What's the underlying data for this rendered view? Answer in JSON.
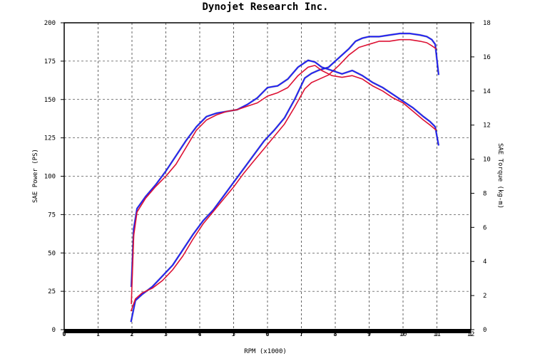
{
  "chart_data": {
    "type": "line",
    "title": "Dynojet Research Inc.",
    "xlabel": "RPM (x1000)",
    "ylabel": "SAE Power (PS)",
    "y2label": "SAE Torque (kg-m)",
    "xlim": [
      0,
      12
    ],
    "ylim": [
      0,
      200
    ],
    "y2lim": [
      0,
      18
    ],
    "x_ticks": [
      "0",
      "1",
      "2",
      "3",
      "4",
      "5",
      "6",
      "7",
      "8",
      "9",
      "10",
      "11",
      "12"
    ],
    "y_ticks": [
      "0",
      "25",
      "50",
      "75",
      "100",
      "125",
      "150",
      "175",
      "200"
    ],
    "y2_ticks": [
      "0",
      "2",
      "4",
      "6",
      "8",
      "10",
      "12",
      "14",
      "16",
      "18"
    ],
    "grid": true,
    "colors": {
      "blue": "#1a1aff",
      "red": "#dd1133",
      "dark": "#222266"
    },
    "series": [
      {
        "color": "blue",
        "axis": "y",
        "x": [
          1.97,
          2.1,
          2.3,
          2.6,
          2.9,
          3.2,
          3.5,
          3.8,
          4.1,
          4.4,
          4.7,
          5.0,
          5.3,
          5.6,
          5.9,
          6.2,
          6.5,
          6.8,
          7.1,
          7.3,
          7.5,
          7.8,
          8.1,
          8.4,
          8.6,
          8.8,
          9.0,
          9.3,
          9.6,
          9.9,
          10.2,
          10.5,
          10.7,
          10.85,
          10.95,
          11.05
        ],
        "values": [
          5,
          19,
          23,
          28,
          35,
          42,
          52,
          62,
          71,
          78,
          87,
          96,
          105,
          114,
          123,
          130,
          138,
          150,
          164,
          167,
          169,
          171,
          177,
          183,
          188,
          190,
          191,
          191,
          192,
          193,
          193,
          192,
          191,
          189,
          186,
          166
        ]
      },
      {
        "color": "red",
        "axis": "y",
        "x": [
          1.97,
          2.1,
          2.3,
          2.6,
          2.9,
          3.2,
          3.5,
          3.8,
          4.1,
          4.4,
          4.7,
          5.0,
          5.3,
          5.6,
          5.9,
          6.2,
          6.5,
          6.8,
          7.1,
          7.3,
          7.5,
          7.8,
          8.1,
          8.4,
          8.7,
          9.0,
          9.3,
          9.6,
          9.9,
          10.2,
          10.5,
          10.7,
          10.85,
          10.98
        ],
        "values": [
          12,
          20,
          24,
          27,
          32,
          39,
          48,
          59,
          69,
          77,
          85,
          93,
          102,
          110,
          118,
          126,
          134,
          145,
          157,
          161,
          163,
          166,
          172,
          179,
          184,
          186,
          188,
          188,
          189,
          189,
          188,
          187,
          185,
          183
        ]
      },
      {
        "color": "blue",
        "axis": "y2",
        "x": [
          1.98,
          2.05,
          2.15,
          2.4,
          2.7,
          3.0,
          3.3,
          3.6,
          3.9,
          4.2,
          4.5,
          4.8,
          5.1,
          5.4,
          5.7,
          6.0,
          6.3,
          6.6,
          6.9,
          7.2,
          7.4,
          7.6,
          7.9,
          8.2,
          8.5,
          8.8,
          9.1,
          9.4,
          9.7,
          10.0,
          10.3,
          10.6,
          10.8,
          10.95,
          11.05
        ],
        "values": [
          2.5,
          5.9,
          7.1,
          7.8,
          8.5,
          9.3,
          10.2,
          11.1,
          11.9,
          12.5,
          12.7,
          12.8,
          12.9,
          13.2,
          13.6,
          14.2,
          14.3,
          14.7,
          15.4,
          15.8,
          15.7,
          15.4,
          15.2,
          15.0,
          15.2,
          14.9,
          14.5,
          14.2,
          13.8,
          13.4,
          13.0,
          12.5,
          12.2,
          11.9,
          10.8
        ]
      },
      {
        "color": "red",
        "axis": "y2",
        "x": [
          1.98,
          2.05,
          2.15,
          2.4,
          2.7,
          3.0,
          3.3,
          3.6,
          3.9,
          4.2,
          4.5,
          4.8,
          5.1,
          5.4,
          5.7,
          6.0,
          6.3,
          6.6,
          6.9,
          7.2,
          7.4,
          7.6,
          7.9,
          8.2,
          8.5,
          8.8,
          9.1,
          9.4,
          9.7,
          10.0,
          10.3,
          10.6,
          10.8,
          10.98
        ],
        "values": [
          1.5,
          5.5,
          6.9,
          7.7,
          8.4,
          9.0,
          9.7,
          10.7,
          11.7,
          12.3,
          12.6,
          12.8,
          12.9,
          13.1,
          13.3,
          13.7,
          13.9,
          14.2,
          14.9,
          15.4,
          15.5,
          15.2,
          14.9,
          14.8,
          14.9,
          14.7,
          14.3,
          14.0,
          13.6,
          13.3,
          12.8,
          12.3,
          12.0,
          11.7
        ]
      }
    ]
  }
}
